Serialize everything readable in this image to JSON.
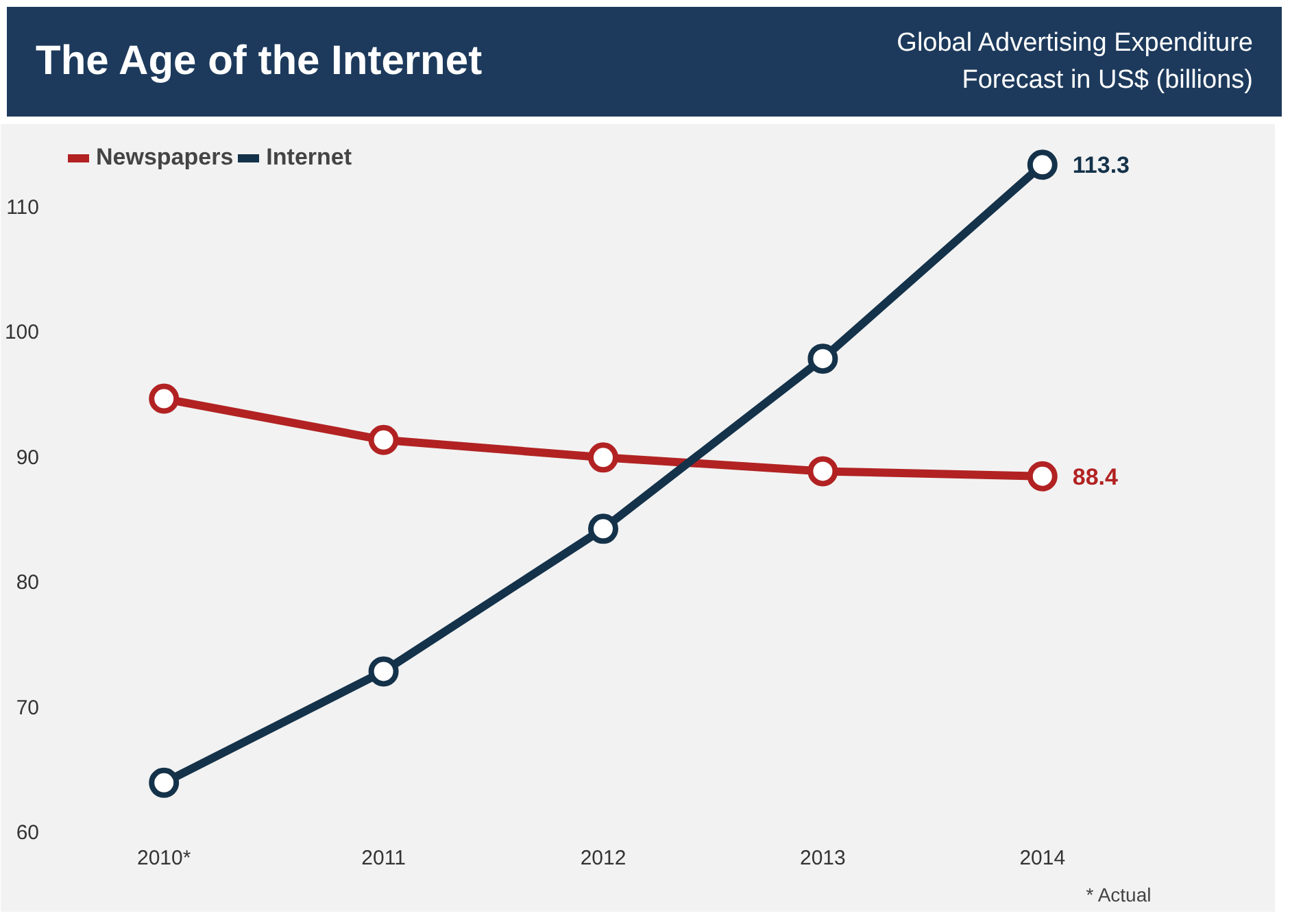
{
  "chart_data": {
    "type": "line",
    "title": "The Age of the Internet",
    "subtitle": "Global Advertising Expenditure Forecast in US$ (billions)",
    "categories": [
      "2010*",
      "2011",
      "2012",
      "2013",
      "2014"
    ],
    "series": [
      {
        "name": "Newspapers",
        "color": "#b22222",
        "values": [
          94.6,
          91.3,
          89.9,
          88.8,
          88.4
        ],
        "value_labels": [
          null,
          null,
          null,
          null,
          "88.4"
        ]
      },
      {
        "name": "Internet",
        "color": "#14324a",
        "values": [
          63.9,
          72.8,
          84.2,
          97.8,
          113.3
        ],
        "value_labels": [
          null,
          null,
          null,
          null,
          "113.3"
        ]
      }
    ],
    "ylim": [
      60,
      116
    ],
    "yticks": [
      60,
      70,
      80,
      90,
      100,
      110
    ],
    "grid": false,
    "legend": "top left",
    "marker": "circle",
    "line_style": "solid",
    "annotations": [
      "* Actual"
    ]
  }
}
